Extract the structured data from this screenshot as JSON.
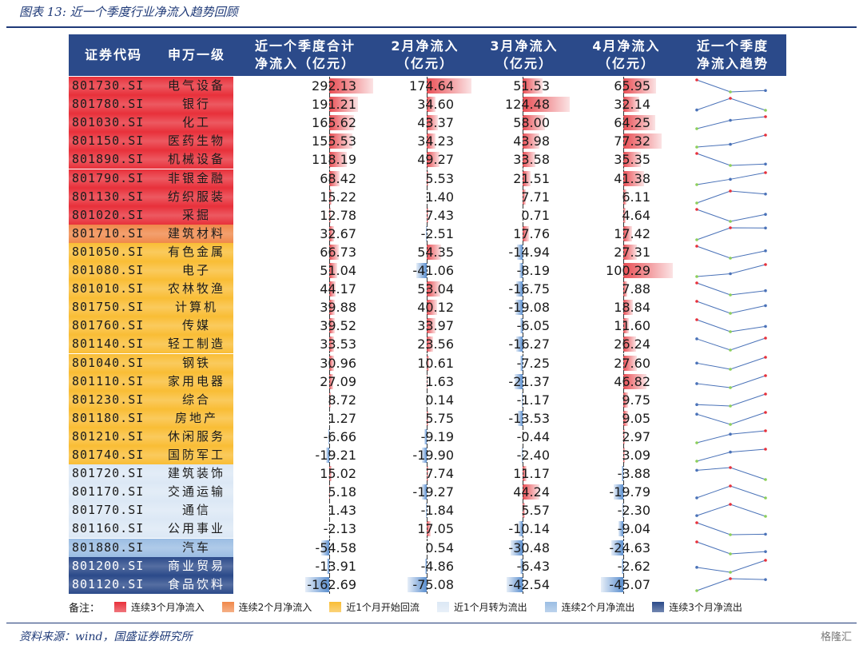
{
  "title": "图表 13:  近一个季度行业净流入趋势回顾",
  "headers": {
    "code": "证券代码",
    "industry": "申万一级",
    "quarter": [
      "近一个季度合计",
      "净流入（亿元）"
    ],
    "feb": [
      "2月净流入",
      "（亿元）"
    ],
    "mar": [
      "3月净流入",
      "（亿元）"
    ],
    "apr": [
      "4月净流入",
      "（亿元）"
    ],
    "trend": [
      "近一个季度",
      "净流入趋势"
    ]
  },
  "rows": [
    {
      "code": "801730.SI",
      "name": "电气设备",
      "quarter": "292.13",
      "feb": "174.64",
      "mar": "51.53",
      "apr": "65.95",
      "color": "#e8303a"
    },
    {
      "code": "801780.SI",
      "name": "银行",
      "quarter": "191.21",
      "feb": "34.60",
      "mar": "124.48",
      "apr": "32.14",
      "color": "#e8303a"
    },
    {
      "code": "801030.SI",
      "name": "化工",
      "quarter": "165.62",
      "feb": "43.37",
      "mar": "58.00",
      "apr": "64.25",
      "color": "#e8303a"
    },
    {
      "code": "801150.SI",
      "name": "医药生物",
      "quarter": "155.53",
      "feb": "34.23",
      "mar": "43.98",
      "apr": "77.32",
      "color": "#e8303a"
    },
    {
      "code": "801890.SI",
      "name": "机械设备",
      "quarter": "118.19",
      "feb": "49.27",
      "mar": "33.58",
      "apr": "35.35",
      "color": "#e8303a"
    },
    {
      "code": "801790.SI",
      "name": "非银金融",
      "quarter": "68.42",
      "feb": "5.53",
      "mar": "21.51",
      "apr": "41.38",
      "color": "#e8303a"
    },
    {
      "code": "801130.SI",
      "name": "纺织服装",
      "quarter": "15.22",
      "feb": "1.40",
      "mar": "7.71",
      "apr": "6.11",
      "color": "#e8303a"
    },
    {
      "code": "801020.SI",
      "name": "采掘",
      "quarter": "12.78",
      "feb": "7.43",
      "mar": "0.71",
      "apr": "4.64",
      "color": "#e8303a"
    },
    {
      "code": "801710.SI",
      "name": "建筑材料",
      "quarter": "32.67",
      "feb": "-2.51",
      "mar": "17.76",
      "apr": "17.42",
      "color": "#f0884a"
    },
    {
      "code": "801050.SI",
      "name": "有色金属",
      "quarter": "66.73",
      "feb": "54.35",
      "mar": "-14.94",
      "apr": "27.31",
      "color": "#f9bd35"
    },
    {
      "code": "801080.SI",
      "name": "电子",
      "quarter": "51.04",
      "feb": "-41.06",
      "mar": "-8.19",
      "apr": "100.29",
      "color": "#f9bd35"
    },
    {
      "code": "801010.SI",
      "name": "农林牧渔",
      "quarter": "44.17",
      "feb": "53.04",
      "mar": "-16.75",
      "apr": "7.88",
      "color": "#f9bd35"
    },
    {
      "code": "801750.SI",
      "name": "计算机",
      "quarter": "39.88",
      "feb": "40.12",
      "mar": "-19.08",
      "apr": "18.84",
      "color": "#f9bd35"
    },
    {
      "code": "801760.SI",
      "name": "传媒",
      "quarter": "39.52",
      "feb": "33.97",
      "mar": "-6.05",
      "apr": "11.60",
      "color": "#f9bd35"
    },
    {
      "code": "801140.SI",
      "name": "轻工制造",
      "quarter": "33.53",
      "feb": "23.56",
      "mar": "-16.27",
      "apr": "26.24",
      "color": "#f9bd35"
    },
    {
      "code": "801040.SI",
      "name": "钢铁",
      "quarter": "30.96",
      "feb": "10.61",
      "mar": "-7.25",
      "apr": "27.60",
      "color": "#f9bd35"
    },
    {
      "code": "801110.SI",
      "name": "家用电器",
      "quarter": "27.09",
      "feb": "1.63",
      "mar": "-21.37",
      "apr": "46.82",
      "color": "#f9bd35"
    },
    {
      "code": "801230.SI",
      "name": "综合",
      "quarter": "8.72",
      "feb": "0.14",
      "mar": "-1.17",
      "apr": "9.75",
      "color": "#f9bd35"
    },
    {
      "code": "801180.SI",
      "name": "房地产",
      "quarter": "1.27",
      "feb": "5.75",
      "mar": "-13.53",
      "apr": "9.05",
      "color": "#f9bd35"
    },
    {
      "code": "801210.SI",
      "name": "休闲服务",
      "quarter": "-6.66",
      "feb": "-9.19",
      "mar": "-0.44",
      "apr": "2.97",
      "color": "#f9bd35"
    },
    {
      "code": "801740.SI",
      "name": "国防军工",
      "quarter": "-19.21",
      "feb": "-19.90",
      "mar": "-2.40",
      "apr": "3.09",
      "color": "#f9bd35"
    },
    {
      "code": "801720.SI",
      "name": "建筑装饰",
      "quarter": "15.02",
      "feb": "7.74",
      "mar": "11.17",
      "apr": "-3.88",
      "color": "#dce8f5"
    },
    {
      "code": "801170.SI",
      "name": "交通运输",
      "quarter": "5.18",
      "feb": "-19.27",
      "mar": "44.24",
      "apr": "-19.79",
      "color": "#dce8f5"
    },
    {
      "code": "801770.SI",
      "name": "通信",
      "quarter": "1.43",
      "feb": "-1.84",
      "mar": "5.57",
      "apr": "-2.30",
      "color": "#dce8f5"
    },
    {
      "code": "801160.SI",
      "name": "公用事业",
      "quarter": "-2.13",
      "feb": "17.05",
      "mar": "-10.14",
      "apr": "-9.04",
      "color": "#dce8f5"
    },
    {
      "code": "801880.SI",
      "name": "汽车",
      "quarter": "-54.58",
      "feb": "0.54",
      "mar": "-30.48",
      "apr": "-24.63",
      "color": "#9bbde3"
    },
    {
      "code": "801200.SI",
      "name": "商业贸易",
      "quarter": "-13.91",
      "feb": "-4.86",
      "mar": "-6.43",
      "apr": "-2.62",
      "color": "#2b4a8a"
    },
    {
      "code": "801120.SI",
      "name": "食品饮料",
      "quarter": "-162.69",
      "feb": "-75.08",
      "mar": "-42.54",
      "apr": "-45.07",
      "color": "#2b4a8a"
    }
  ],
  "legend": {
    "label": "备注：",
    "items": [
      {
        "text": "连续3个月净流入",
        "color": "#e8303a"
      },
      {
        "text": "连续2个月净流入",
        "color": "#f0884a"
      },
      {
        "text": "近1个月开始回流",
        "color": "#f9bd35"
      },
      {
        "text": "近1个月转为流出",
        "color": "#dce8f5"
      },
      {
        "text": "连续2个月净流出",
        "color": "#9bbde3"
      },
      {
        "text": "连续3个月净流出",
        "color": "#2b4a8a"
      }
    ]
  },
  "source": "资料来源：wind，国盛证券研究所",
  "watermark": "格隆汇"
}
